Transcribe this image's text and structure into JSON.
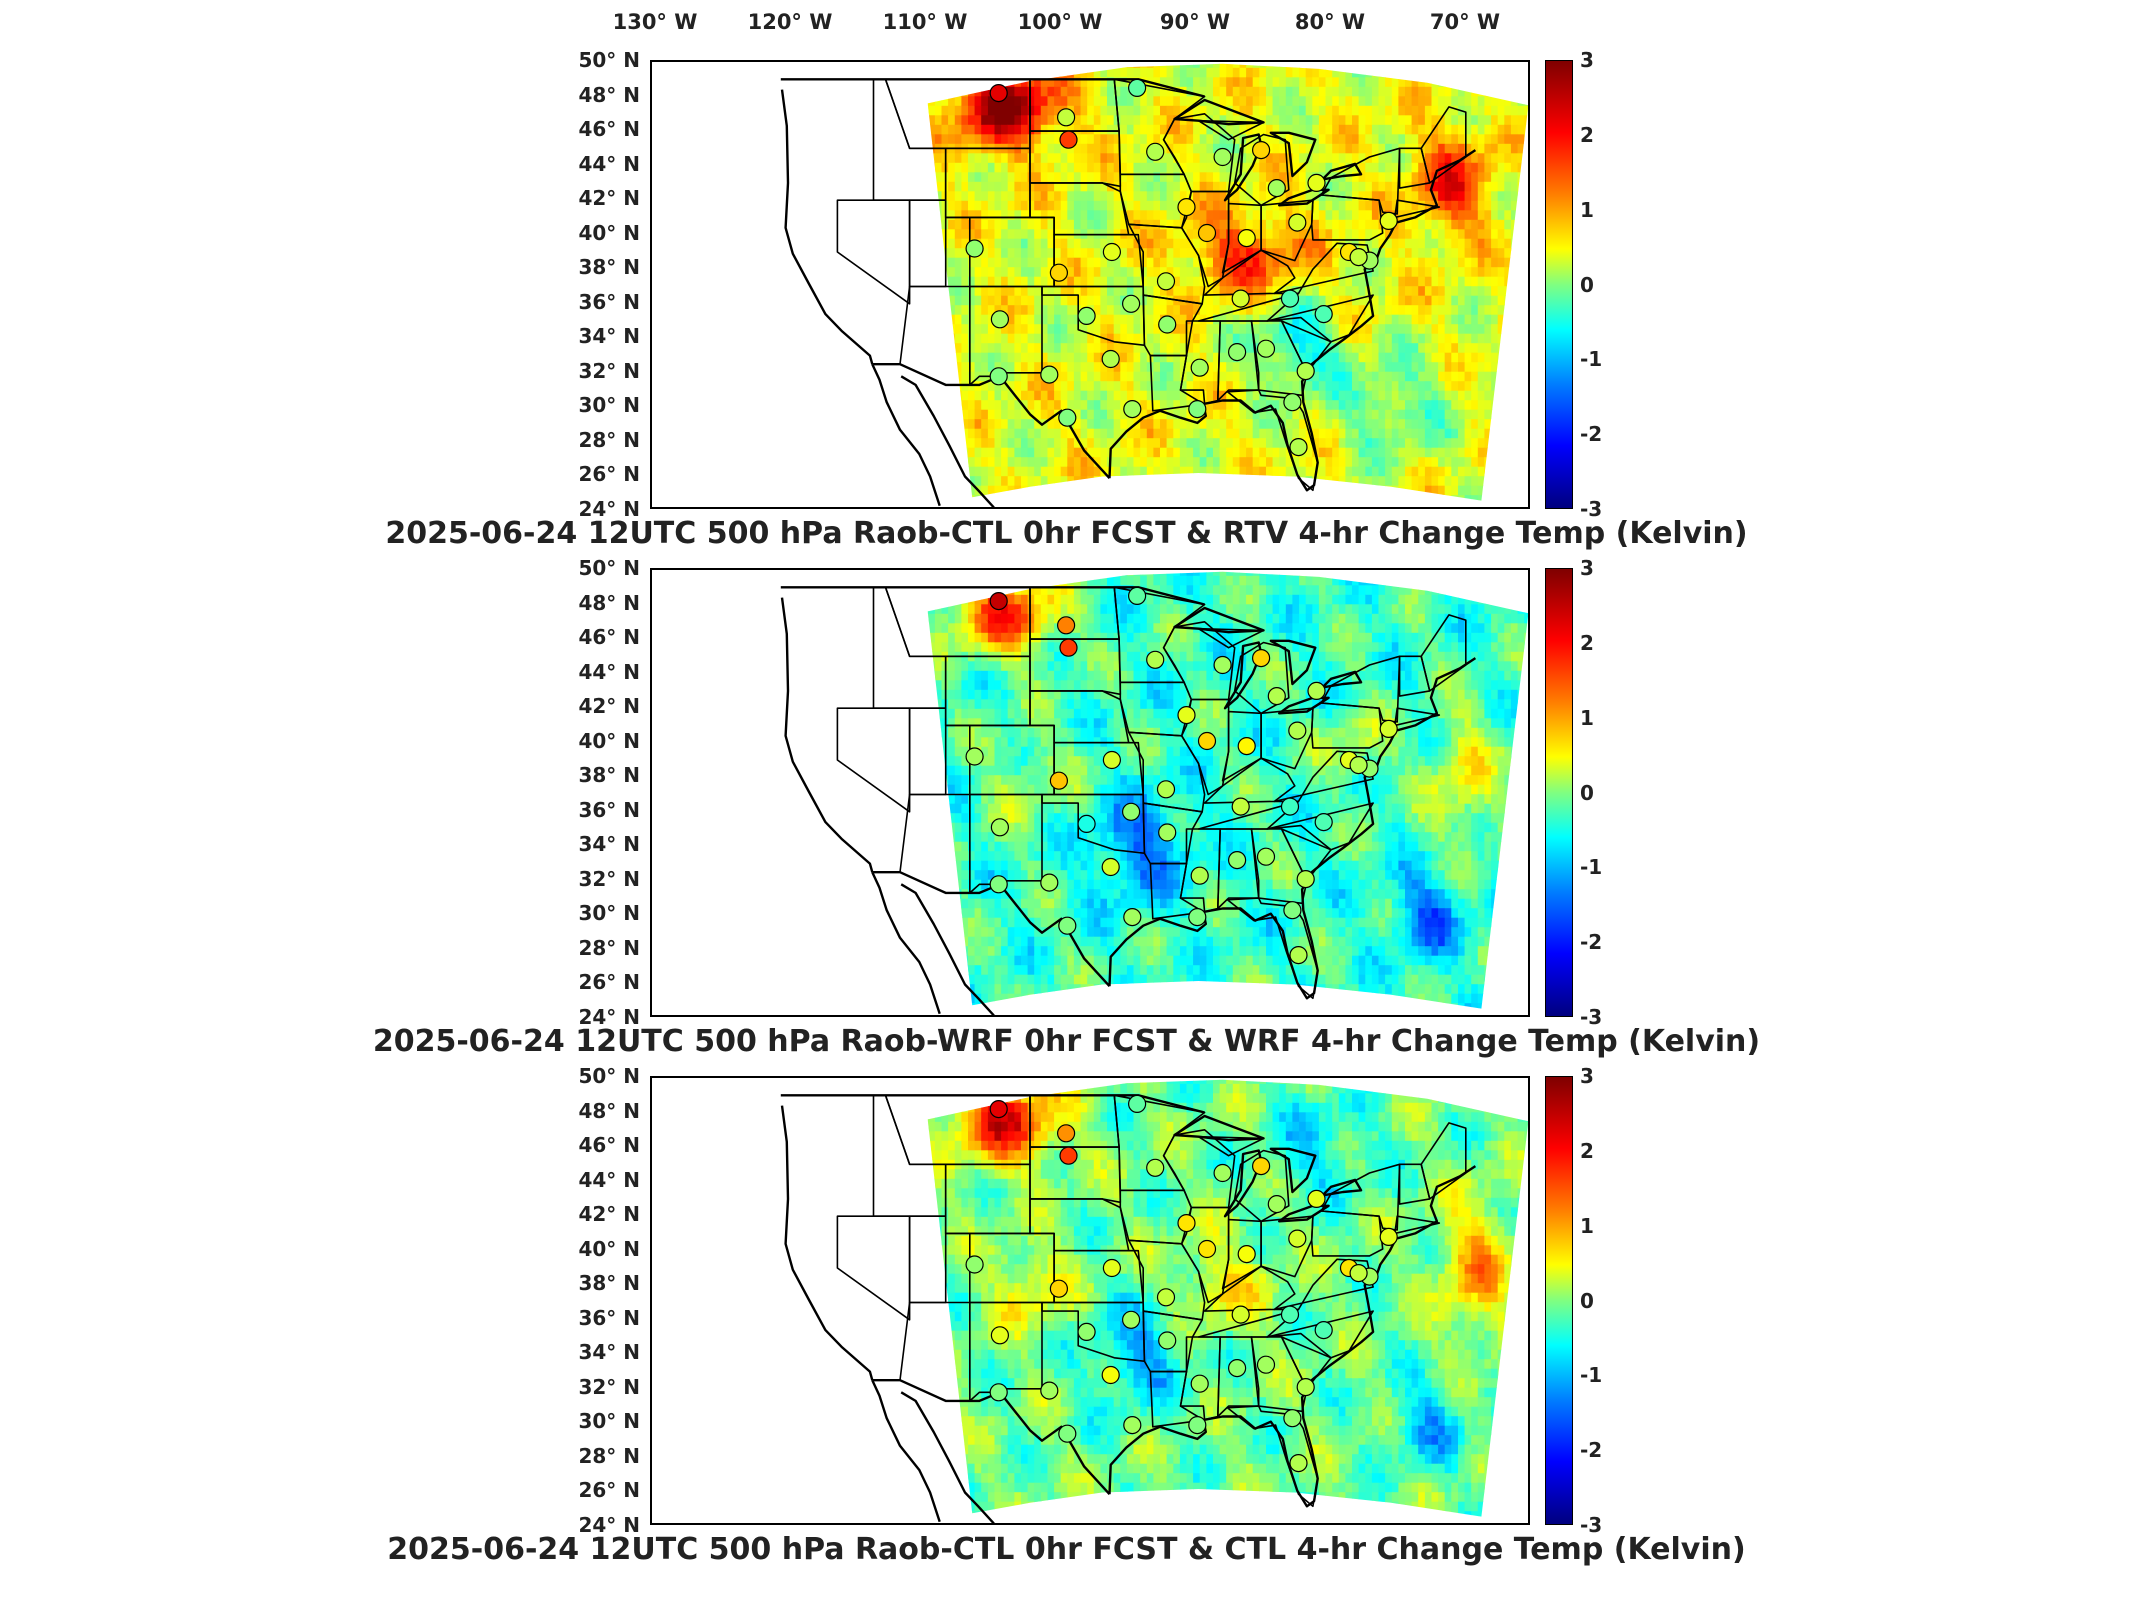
{
  "top_longitude_labels": [
    "130° W",
    "120° W",
    "110° W",
    "100° W",
    "90° W",
    "80° W",
    "70° W"
  ],
  "latitude_labels": [
    "50° N",
    "48° N",
    "46° N",
    "44° N",
    "42° N",
    "40° N",
    "38° N",
    "36° N",
    "34° N",
    "32° N",
    "30° N",
    "28° N",
    "26° N",
    "24° N"
  ],
  "colorbar": {
    "ticks": [
      "3",
      "2",
      "1",
      "0",
      "-1",
      "-2",
      "-3"
    ],
    "range": [
      -3,
      3
    ],
    "colormap": "jet"
  },
  "panels": [
    {
      "title": "2025-06-24 12UTC 500 hPa Raob-CTL 0hr FCST & RTV 4-hr Change Temp (Kelvin)",
      "field_tone": "warm",
      "stations": [
        {
          "lon": -106.6,
          "lat": 48.2,
          "v": 2.4
        },
        {
          "lon": -101.0,
          "lat": 46.8,
          "v": 0.4
        },
        {
          "lon": -100.8,
          "lat": 45.5,
          "v": 1.9
        },
        {
          "lon": -95.1,
          "lat": 48.5,
          "v": -0.2
        },
        {
          "lon": -93.6,
          "lat": 44.8,
          "v": 0.3
        },
        {
          "lon": -88.0,
          "lat": 44.5,
          "v": 0.2
        },
        {
          "lon": -84.8,
          "lat": 44.9,
          "v": 1.0
        },
        {
          "lon": -83.5,
          "lat": 42.7,
          "v": 0.2
        },
        {
          "lon": -80.2,
          "lat": 43.0,
          "v": 0.6
        },
        {
          "lon": -91.0,
          "lat": 41.6,
          "v": 0.9
        },
        {
          "lon": -89.3,
          "lat": 40.1,
          "v": 1.1
        },
        {
          "lon": -86.0,
          "lat": 39.8,
          "v": 0.7
        },
        {
          "lon": -81.8,
          "lat": 40.7,
          "v": 0.5
        },
        {
          "lon": -77.5,
          "lat": 39.0,
          "v": 0.9
        },
        {
          "lon": -75.8,
          "lat": 38.5,
          "v": 0.2
        },
        {
          "lon": -108.6,
          "lat": 39.2,
          "v": 0.1
        },
        {
          "lon": -101.6,
          "lat": 37.8,
          "v": 1.0
        },
        {
          "lon": -97.2,
          "lat": 39.0,
          "v": 0.6
        },
        {
          "lon": -92.7,
          "lat": 37.3,
          "v": 0.4
        },
        {
          "lon": -86.5,
          "lat": 36.3,
          "v": 0.5
        },
        {
          "lon": -82.4,
          "lat": 36.3,
          "v": -0.3
        },
        {
          "lon": -79.6,
          "lat": 35.4,
          "v": -0.3
        },
        {
          "lon": -106.5,
          "lat": 35.1,
          "v": 0.2
        },
        {
          "lon": -99.3,
          "lat": 35.3,
          "v": 0.1
        },
        {
          "lon": -95.6,
          "lat": 36.0,
          "v": 0.2
        },
        {
          "lon": -92.6,
          "lat": 34.8,
          "v": 0.1
        },
        {
          "lon": -97.3,
          "lat": 32.8,
          "v": 0.3
        },
        {
          "lon": -102.4,
          "lat": 31.9,
          "v": 0.2
        },
        {
          "lon": -106.6,
          "lat": 31.8,
          "v": 0.0
        },
        {
          "lon": -89.9,
          "lat": 32.3,
          "v": 0.2
        },
        {
          "lon": -86.8,
          "lat": 33.2,
          "v": 0.1
        },
        {
          "lon": -84.4,
          "lat": 33.4,
          "v": 0.2
        },
        {
          "lon": -81.1,
          "lat": 32.1,
          "v": 0.3
        },
        {
          "lon": -82.2,
          "lat": 30.3,
          "v": 0.1
        },
        {
          "lon": -100.9,
          "lat": 29.4,
          "v": 0.0
        },
        {
          "lon": -95.5,
          "lat": 29.9,
          "v": 0.2
        },
        {
          "lon": -90.1,
          "lat": 29.9,
          "v": 0.0
        },
        {
          "lon": -81.7,
          "lat": 27.7,
          "v": 0.3
        },
        {
          "lon": -74.2,
          "lat": 40.8,
          "v": 0.6
        },
        {
          "lon": -76.7,
          "lat": 38.7,
          "v": 0.4
        }
      ]
    },
    {
      "title": "2025-06-24 12UTC 500 hPa Raob-WRF 0hr FCST & WRF 4-hr Change Temp (Kelvin)",
      "field_tone": "cool",
      "stations": [
        {
          "lon": -106.6,
          "lat": 48.2,
          "v": 2.6
        },
        {
          "lon": -101.0,
          "lat": 46.8,
          "v": 1.5
        },
        {
          "lon": -100.8,
          "lat": 45.5,
          "v": 1.9
        },
        {
          "lon": -95.1,
          "lat": 48.5,
          "v": -0.2
        },
        {
          "lon": -93.6,
          "lat": 44.8,
          "v": 0.3
        },
        {
          "lon": -88.0,
          "lat": 44.5,
          "v": 0.2
        },
        {
          "lon": -84.8,
          "lat": 44.9,
          "v": 1.0
        },
        {
          "lon": -83.5,
          "lat": 42.7,
          "v": 0.3
        },
        {
          "lon": -80.2,
          "lat": 43.0,
          "v": 0.3
        },
        {
          "lon": -91.0,
          "lat": 41.6,
          "v": 0.6
        },
        {
          "lon": -89.3,
          "lat": 40.1,
          "v": 1.0
        },
        {
          "lon": -86.0,
          "lat": 39.8,
          "v": 0.8
        },
        {
          "lon": -81.8,
          "lat": 40.7,
          "v": 0.3
        },
        {
          "lon": -77.5,
          "lat": 39.0,
          "v": 0.6
        },
        {
          "lon": -75.8,
          "lat": 38.5,
          "v": 0.1
        },
        {
          "lon": -108.6,
          "lat": 39.2,
          "v": 0.2
        },
        {
          "lon": -101.6,
          "lat": 37.8,
          "v": 1.1
        },
        {
          "lon": -97.2,
          "lat": 39.0,
          "v": 0.5
        },
        {
          "lon": -92.7,
          "lat": 37.3,
          "v": 0.3
        },
        {
          "lon": -86.5,
          "lat": 36.3,
          "v": 0.4
        },
        {
          "lon": -82.4,
          "lat": 36.3,
          "v": -0.4
        },
        {
          "lon": -79.6,
          "lat": 35.4,
          "v": -0.3
        },
        {
          "lon": -106.5,
          "lat": 35.1,
          "v": 0.2
        },
        {
          "lon": -99.3,
          "lat": 35.3,
          "v": -0.6
        },
        {
          "lon": -95.6,
          "lat": 36.0,
          "v": 0.1
        },
        {
          "lon": -92.6,
          "lat": 34.8,
          "v": 0.2
        },
        {
          "lon": -97.3,
          "lat": 32.8,
          "v": 0.5
        },
        {
          "lon": -102.4,
          "lat": 31.9,
          "v": 0.2
        },
        {
          "lon": -106.6,
          "lat": 31.8,
          "v": 0.0
        },
        {
          "lon": -89.9,
          "lat": 32.3,
          "v": 0.3
        },
        {
          "lon": -86.8,
          "lat": 33.2,
          "v": 0.1
        },
        {
          "lon": -84.4,
          "lat": 33.4,
          "v": 0.2
        },
        {
          "lon": -81.1,
          "lat": 32.1,
          "v": 0.3
        },
        {
          "lon": -82.2,
          "lat": 30.3,
          "v": 0.0
        },
        {
          "lon": -100.9,
          "lat": 29.4,
          "v": 0.0
        },
        {
          "lon": -95.5,
          "lat": 29.9,
          "v": 0.2
        },
        {
          "lon": -90.1,
          "lat": 29.9,
          "v": 0.0
        },
        {
          "lon": -81.7,
          "lat": 27.7,
          "v": 0.3
        },
        {
          "lon": -74.2,
          "lat": 40.8,
          "v": 0.5
        },
        {
          "lon": -76.7,
          "lat": 38.7,
          "v": 0.3
        }
      ]
    },
    {
      "title": "2025-06-24 12UTC 500 hPa Raob-CTL 0hr FCST & CTL 4-hr Change Temp (Kelvin)",
      "field_tone": "mixed",
      "stations": [
        {
          "lon": -106.6,
          "lat": 48.2,
          "v": 2.4
        },
        {
          "lon": -101.0,
          "lat": 46.8,
          "v": 1.4
        },
        {
          "lon": -100.8,
          "lat": 45.5,
          "v": 1.9
        },
        {
          "lon": -95.1,
          "lat": 48.5,
          "v": -0.2
        },
        {
          "lon": -93.6,
          "lat": 44.8,
          "v": 0.3
        },
        {
          "lon": -88.0,
          "lat": 44.5,
          "v": 0.2
        },
        {
          "lon": -84.8,
          "lat": 44.9,
          "v": 1.0
        },
        {
          "lon": -83.5,
          "lat": 42.7,
          "v": 0.2
        },
        {
          "lon": -80.2,
          "lat": 43.0,
          "v": 0.6
        },
        {
          "lon": -91.0,
          "lat": 41.6,
          "v": 0.9
        },
        {
          "lon": -89.3,
          "lat": 40.1,
          "v": 0.9
        },
        {
          "lon": -86.0,
          "lat": 39.8,
          "v": 0.7
        },
        {
          "lon": -81.8,
          "lat": 40.7,
          "v": 0.5
        },
        {
          "lon": -77.5,
          "lat": 39.0,
          "v": 0.9
        },
        {
          "lon": -75.8,
          "lat": 38.5,
          "v": 0.2
        },
        {
          "lon": -108.6,
          "lat": 39.2,
          "v": 0.1
        },
        {
          "lon": -101.6,
          "lat": 37.8,
          "v": 1.0
        },
        {
          "lon": -97.2,
          "lat": 39.0,
          "v": 0.6
        },
        {
          "lon": -92.7,
          "lat": 37.3,
          "v": 0.4
        },
        {
          "lon": -86.5,
          "lat": 36.3,
          "v": 0.5
        },
        {
          "lon": -82.4,
          "lat": 36.3,
          "v": -0.3
        },
        {
          "lon": -79.6,
          "lat": 35.4,
          "v": -0.3
        },
        {
          "lon": -106.5,
          "lat": 35.1,
          "v": 0.6
        },
        {
          "lon": -99.3,
          "lat": 35.3,
          "v": 0.1
        },
        {
          "lon": -95.6,
          "lat": 36.0,
          "v": 0.2
        },
        {
          "lon": -92.6,
          "lat": 34.8,
          "v": 0.1
        },
        {
          "lon": -97.3,
          "lat": 32.8,
          "v": 0.7
        },
        {
          "lon": -102.4,
          "lat": 31.9,
          "v": 0.2
        },
        {
          "lon": -106.6,
          "lat": 31.8,
          "v": 0.0
        },
        {
          "lon": -89.9,
          "lat": 32.3,
          "v": 0.2
        },
        {
          "lon": -86.8,
          "lat": 33.2,
          "v": 0.1
        },
        {
          "lon": -84.4,
          "lat": 33.4,
          "v": 0.2
        },
        {
          "lon": -81.1,
          "lat": 32.1,
          "v": 0.3
        },
        {
          "lon": -82.2,
          "lat": 30.3,
          "v": 0.1
        },
        {
          "lon": -100.9,
          "lat": 29.4,
          "v": 0.0
        },
        {
          "lon": -95.5,
          "lat": 29.9,
          "v": 0.2
        },
        {
          "lon": -90.1,
          "lat": 29.9,
          "v": 0.0
        },
        {
          "lon": -81.7,
          "lat": 27.7,
          "v": 0.3
        },
        {
          "lon": -74.2,
          "lat": 40.8,
          "v": 0.6
        },
        {
          "lon": -76.7,
          "lat": 38.7,
          "v": 0.4
        }
      ]
    }
  ]
}
